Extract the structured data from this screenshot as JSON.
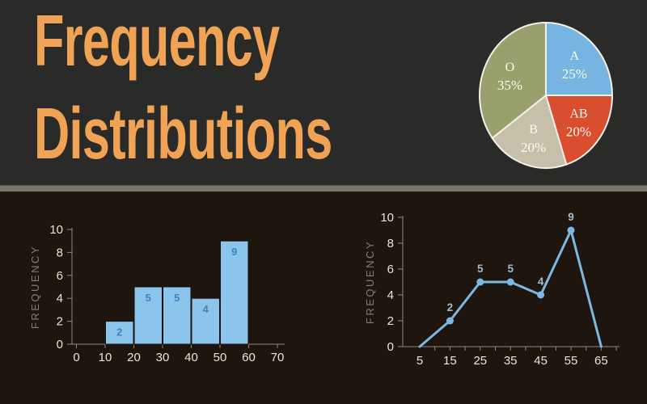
{
  "header": {
    "title_line1": "Frequency",
    "title_line2": "Distributions"
  },
  "colors": {
    "background_top": "#2a2a29",
    "background_bottom": "#1e150e",
    "divider": "#7b746b",
    "title": "#f0a355",
    "tick_label": "#ebe4d6",
    "axis_line": "#8f887d",
    "axis_title": "#857e74"
  },
  "chart_data": [
    {
      "id": "pie",
      "type": "pie",
      "categories": [
        "A",
        "AB",
        "B",
        "O"
      ],
      "values": [
        25,
        20,
        20,
        35
      ],
      "percent_labels": [
        "25%",
        "20%",
        "20%",
        "35%"
      ],
      "slice_colors": [
        "#76b5e2",
        "#d94e2e",
        "#c6c0aa",
        "#9aa06c"
      ],
      "slice_border_color": "#f3f0e8",
      "label_color": "#fbfaf5",
      "start_angle_deg": 0,
      "direction": "clockwise",
      "legend_position": "none"
    },
    {
      "id": "histogram",
      "type": "bar",
      "bins": [
        [
          10,
          20
        ],
        [
          20,
          30
        ],
        [
          30,
          40
        ],
        [
          40,
          50
        ],
        [
          50,
          60
        ]
      ],
      "values": [
        2,
        5,
        5,
        4,
        9
      ],
      "bar_labels": [
        "2",
        "5",
        "5",
        "4",
        "9"
      ],
      "xticks": [
        0,
        10,
        20,
        30,
        40,
        50,
        60,
        70
      ],
      "yticks": [
        0,
        2,
        4,
        6,
        8,
        10
      ],
      "xlim": [
        0,
        70
      ],
      "ylim": [
        0,
        10
      ],
      "xlabel": "",
      "ylabel": "FREQUENCY",
      "bar_color": "#8cc5eb",
      "bar_label_color": "#3c84c2",
      "grid": false
    },
    {
      "id": "frequency-polygon",
      "type": "line",
      "x": [
        5,
        15,
        25,
        35,
        45,
        55,
        65
      ],
      "y": [
        0,
        2,
        5,
        5,
        4,
        9,
        0
      ],
      "point_labels": [
        "",
        "2",
        "5",
        "5",
        "4",
        "9",
        ""
      ],
      "xticks": [
        5,
        15,
        25,
        35,
        45,
        55,
        65
      ],
      "minor_xtick_step": 5,
      "yticks": [
        0,
        2,
        4,
        6,
        8,
        10
      ],
      "xlim": [
        5,
        70
      ],
      "ylim": [
        0,
        10
      ],
      "xlabel": "",
      "ylabel": "FREQUENCY",
      "line_color": "#7db8e2",
      "marker": "circle",
      "point_label_color": "#a3bac9",
      "grid": false
    }
  ]
}
